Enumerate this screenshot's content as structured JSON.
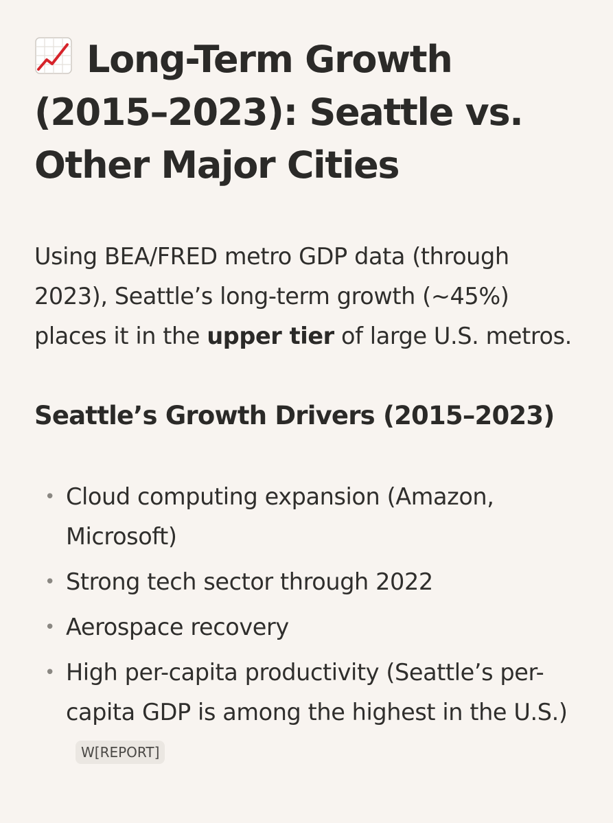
{
  "header": {
    "icon": "chart-increasing-icon",
    "title": "Long-Term Growth (2015–2023): Seattle vs. Other Major Cities"
  },
  "intro": {
    "text_before": "Using BEA/FRED metro GDP data (through 2023), Seattle’s long-term growth (~45%) places it in the ",
    "bold": "upper tier",
    "text_after": " of large U.S. metros."
  },
  "section": {
    "heading": "Seattle’s Growth Drivers (2015–2023)",
    "bullet_symbol": "•",
    "items": [
      {
        "text": "Cloud computing expansion (Amazon, Microsoft)"
      },
      {
        "text": "Strong tech sector through 2022"
      },
      {
        "text": "Aerospace recovery"
      },
      {
        "text": "High per-capita productivity (Seattle’s per-capita GDP is among the highest in the U.S.)",
        "citation": "W[REPORT]"
      }
    ]
  },
  "colors": {
    "background": "#f8f4f0",
    "text": "#2b2a28",
    "icon_line": "#d6232a",
    "badge_bg": "#ebe7e2"
  }
}
